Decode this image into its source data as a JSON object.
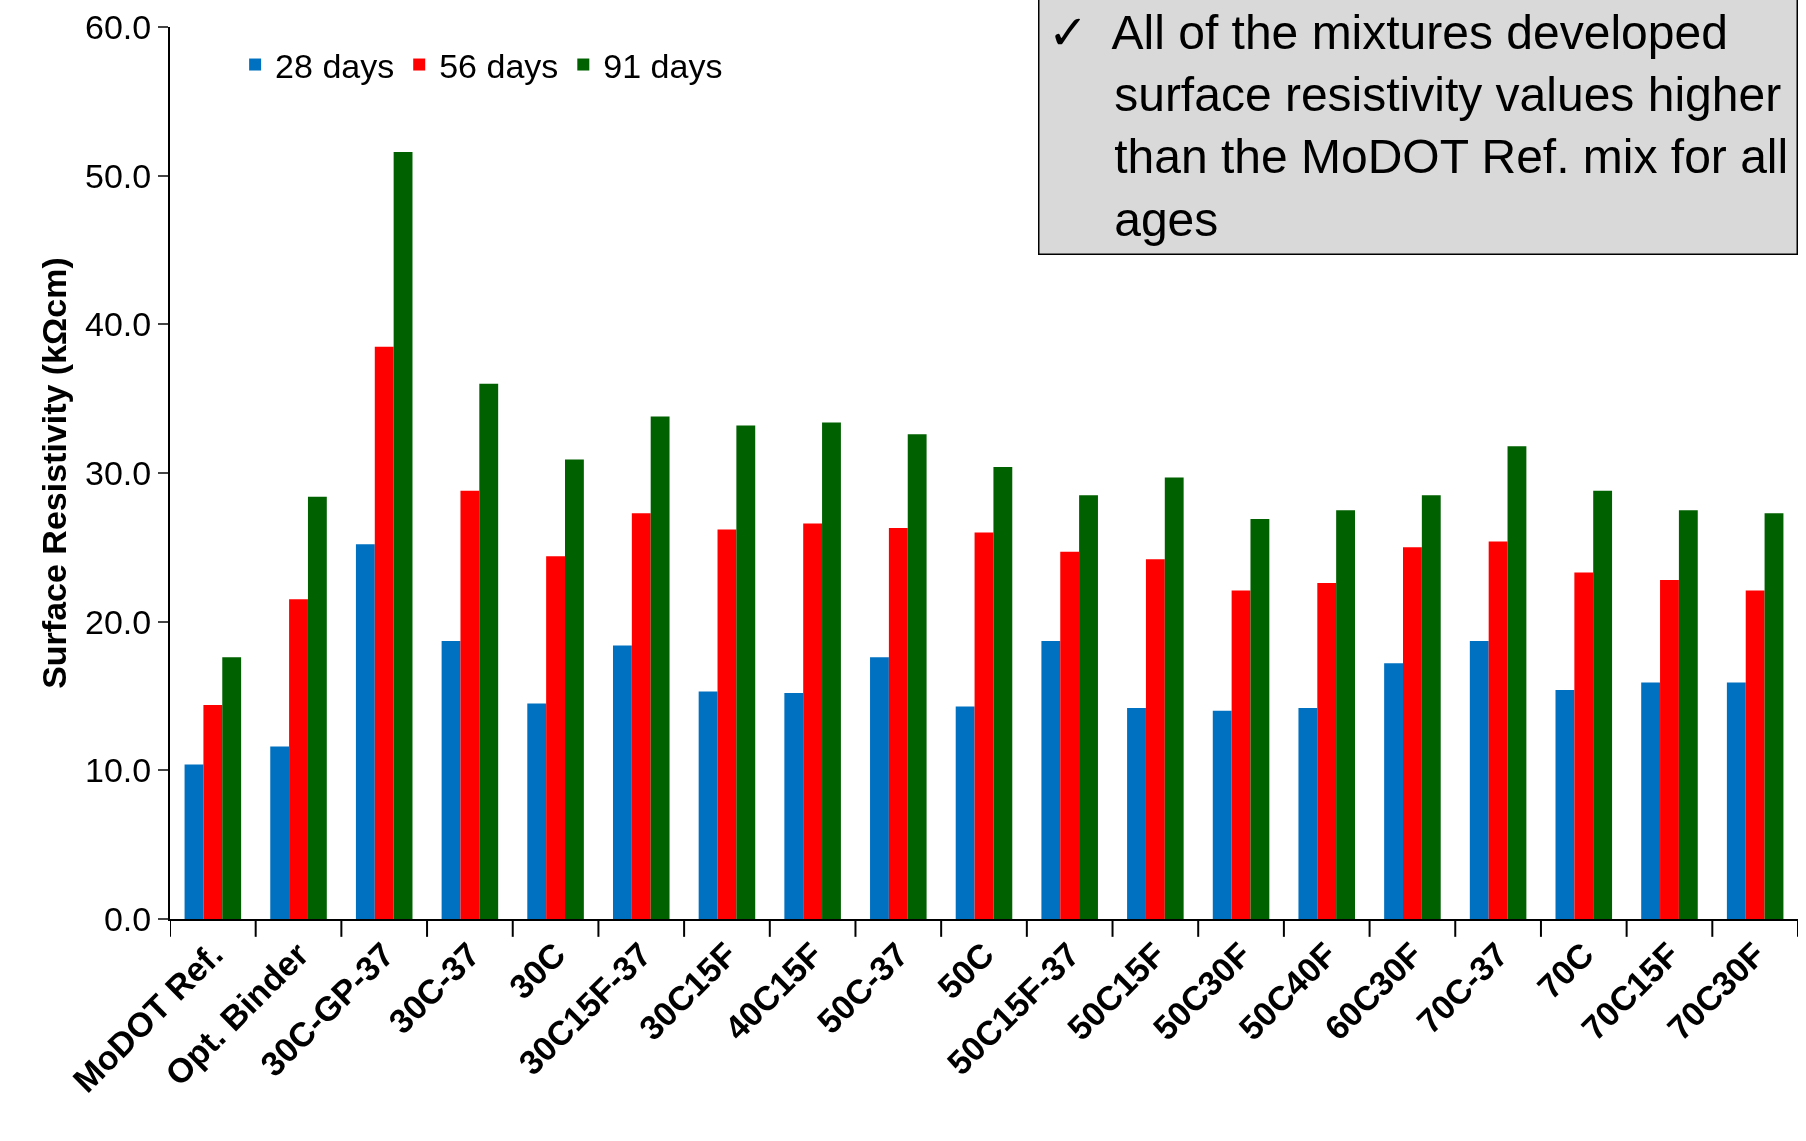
{
  "chart_data": {
    "type": "bar",
    "ylabel": "Surface Resistivity (kΩcm)",
    "annotations": [
      "✓  All of the mixtures developed\n     surface resistivity values higher\n     than the MoDOT Ref. mix for all\n     ages"
    ],
    "categories": [
      "MoDOT Ref.",
      "Opt. Binder",
      "30C-GP-37",
      "30C-37",
      "30C",
      "30C15F-37",
      "30C15F",
      "40C15F",
      "50C-37",
      "50C",
      "50C15F-37",
      "50C15F",
      "50C30F",
      "50C40F",
      "60C30F",
      "70C-37",
      "70C",
      "70C15F",
      "70C30F"
    ],
    "series": [
      {
        "name": "28 days",
        "color": "#0070c0",
        "values": [
          10.4,
          11.6,
          25.2,
          18.7,
          14.5,
          18.4,
          15.3,
          15.2,
          17.6,
          14.3,
          18.7,
          14.2,
          14.0,
          14.2,
          17.2,
          18.7,
          15.4,
          15.9,
          15.9
        ]
      },
      {
        "name": "56 days",
        "color": "#ff0000",
        "values": [
          14.4,
          21.5,
          38.5,
          28.8,
          24.4,
          27.3,
          26.2,
          26.6,
          26.3,
          26.0,
          24.7,
          24.2,
          22.1,
          22.6,
          25.0,
          25.4,
          23.3,
          22.8,
          22.1
        ]
      },
      {
        "name": "91 days",
        "color": "#006100",
        "values": [
          17.6,
          28.4,
          51.6,
          36.0,
          30.9,
          33.8,
          33.2,
          33.4,
          32.6,
          30.4,
          28.5,
          29.7,
          26.9,
          27.5,
          28.5,
          31.8,
          28.8,
          27.5,
          27.3
        ]
      }
    ],
    "ylim": [
      0,
      60
    ],
    "yticks": [
      {
        "value": 0,
        "label": "0.0"
      },
      {
        "value": 10,
        "label": "10.0"
      },
      {
        "value": 20,
        "label": "20.0"
      },
      {
        "value": 30,
        "label": "30.0"
      },
      {
        "value": 40,
        "label": "40.0"
      },
      {
        "value": 50,
        "label": "50.0"
      },
      {
        "value": 60,
        "label": "60.0"
      }
    ],
    "legend": "top left"
  }
}
